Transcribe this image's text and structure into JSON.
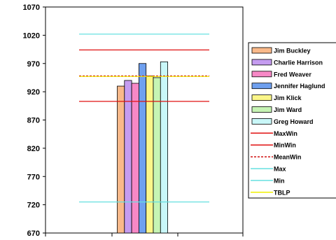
{
  "chart_data": {
    "type": "bar",
    "ylim": [
      670,
      1070
    ],
    "yticks": [
      670,
      720,
      770,
      820,
      870,
      920,
      970,
      1020,
      1070
    ],
    "grid": false,
    "legend_position": "right",
    "series": [
      {
        "name": "Jim Buckley",
        "value": 930,
        "color": "#f9b98a"
      },
      {
        "name": "Charlie Harrison",
        "value": 940,
        "color": "#c59cf0"
      },
      {
        "name": "Fred Weaver",
        "value": 935,
        "color": "#f788c6"
      },
      {
        "name": "Jennifer Haglund",
        "value": 970,
        "color": "#6fa0ef"
      },
      {
        "name": "Jim Klick",
        "value": 948,
        "color": "#fbf68a"
      },
      {
        "name": "Jim Ward",
        "value": 945,
        "color": "#c6f4b4"
      },
      {
        "name": "Greg Howard",
        "value": 973,
        "color": "#c9f7f8"
      }
    ],
    "reference_lines": [
      {
        "name": "MaxWin",
        "value": 994,
        "color": "#e01010",
        "style": "solid"
      },
      {
        "name": "MinWin",
        "value": 903,
        "color": "#e01010",
        "style": "solid"
      },
      {
        "name": "MeanWin",
        "value": 948,
        "color": "#d01010",
        "style": "dashed"
      },
      {
        "name": "Max",
        "value": 1022,
        "color": "#66e0e0",
        "style": "solid"
      },
      {
        "name": "Min",
        "value": 725,
        "color": "#66e0e0",
        "style": "solid"
      },
      {
        "name": "TBLP",
        "value": 947,
        "color": "#f0f000",
        "style": "solid"
      }
    ]
  }
}
